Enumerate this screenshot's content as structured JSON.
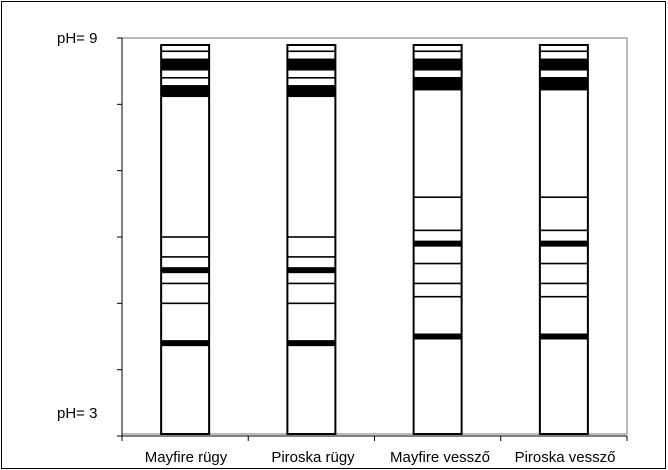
{
  "ph_axis": {
    "top_label": "pH= 9",
    "bottom_label": "pH= 3",
    "top_value": 9,
    "bottom_value": 3,
    "tick_values": [
      9,
      8,
      7,
      6,
      5,
      4,
      3
    ]
  },
  "lanes": [
    {
      "label": "Mayfire rügy",
      "bands": [
        {
          "ph": 8.8,
          "strength": "thin"
        },
        {
          "ph": 8.6,
          "strength": "thick"
        },
        {
          "ph": 8.4,
          "strength": "thin"
        },
        {
          "ph": 8.2,
          "strength": "thick"
        },
        {
          "ph": 6.0,
          "strength": "thin"
        },
        {
          "ph": 5.7,
          "strength": "thin"
        },
        {
          "ph": 5.5,
          "strength": "medium"
        },
        {
          "ph": 5.3,
          "strength": "thin"
        },
        {
          "ph": 5.0,
          "strength": "thin"
        },
        {
          "ph": 4.4,
          "strength": "medium"
        }
      ]
    },
    {
      "label": "Piroska rügy",
      "bands": [
        {
          "ph": 8.8,
          "strength": "thin"
        },
        {
          "ph": 8.6,
          "strength": "thick"
        },
        {
          "ph": 8.4,
          "strength": "thin"
        },
        {
          "ph": 8.2,
          "strength": "thick"
        },
        {
          "ph": 6.0,
          "strength": "thin"
        },
        {
          "ph": 5.7,
          "strength": "thin"
        },
        {
          "ph": 5.5,
          "strength": "medium"
        },
        {
          "ph": 5.3,
          "strength": "thin"
        },
        {
          "ph": 5.0,
          "strength": "thin"
        },
        {
          "ph": 4.4,
          "strength": "medium"
        }
      ]
    },
    {
      "label": "Mayfire vessző",
      "bands": [
        {
          "ph": 8.8,
          "strength": "thin"
        },
        {
          "ph": 8.6,
          "strength": "thick"
        },
        {
          "ph": 8.4,
          "strength": "thin"
        },
        {
          "ph": 8.3,
          "strength": "thick"
        },
        {
          "ph": 6.6,
          "strength": "thin"
        },
        {
          "ph": 6.1,
          "strength": "thin"
        },
        {
          "ph": 5.9,
          "strength": "medium"
        },
        {
          "ph": 5.6,
          "strength": "thin"
        },
        {
          "ph": 5.3,
          "strength": "thin"
        },
        {
          "ph": 5.1,
          "strength": "thin"
        },
        {
          "ph": 4.5,
          "strength": "medium"
        }
      ]
    },
    {
      "label": "Piroska vessző",
      "bands": [
        {
          "ph": 8.8,
          "strength": "thin"
        },
        {
          "ph": 8.6,
          "strength": "thick"
        },
        {
          "ph": 8.4,
          "strength": "thin"
        },
        {
          "ph": 8.3,
          "strength": "thick"
        },
        {
          "ph": 6.6,
          "strength": "thin"
        },
        {
          "ph": 6.1,
          "strength": "thin"
        },
        {
          "ph": 5.9,
          "strength": "medium"
        },
        {
          "ph": 5.6,
          "strength": "thin"
        },
        {
          "ph": 5.3,
          "strength": "thin"
        },
        {
          "ph": 5.1,
          "strength": "thin"
        },
        {
          "ph": 4.5,
          "strength": "medium"
        }
      ]
    }
  ],
  "colors": {
    "band": "#000000",
    "lane_fill": "#ffffff",
    "frame": "#000000"
  }
}
